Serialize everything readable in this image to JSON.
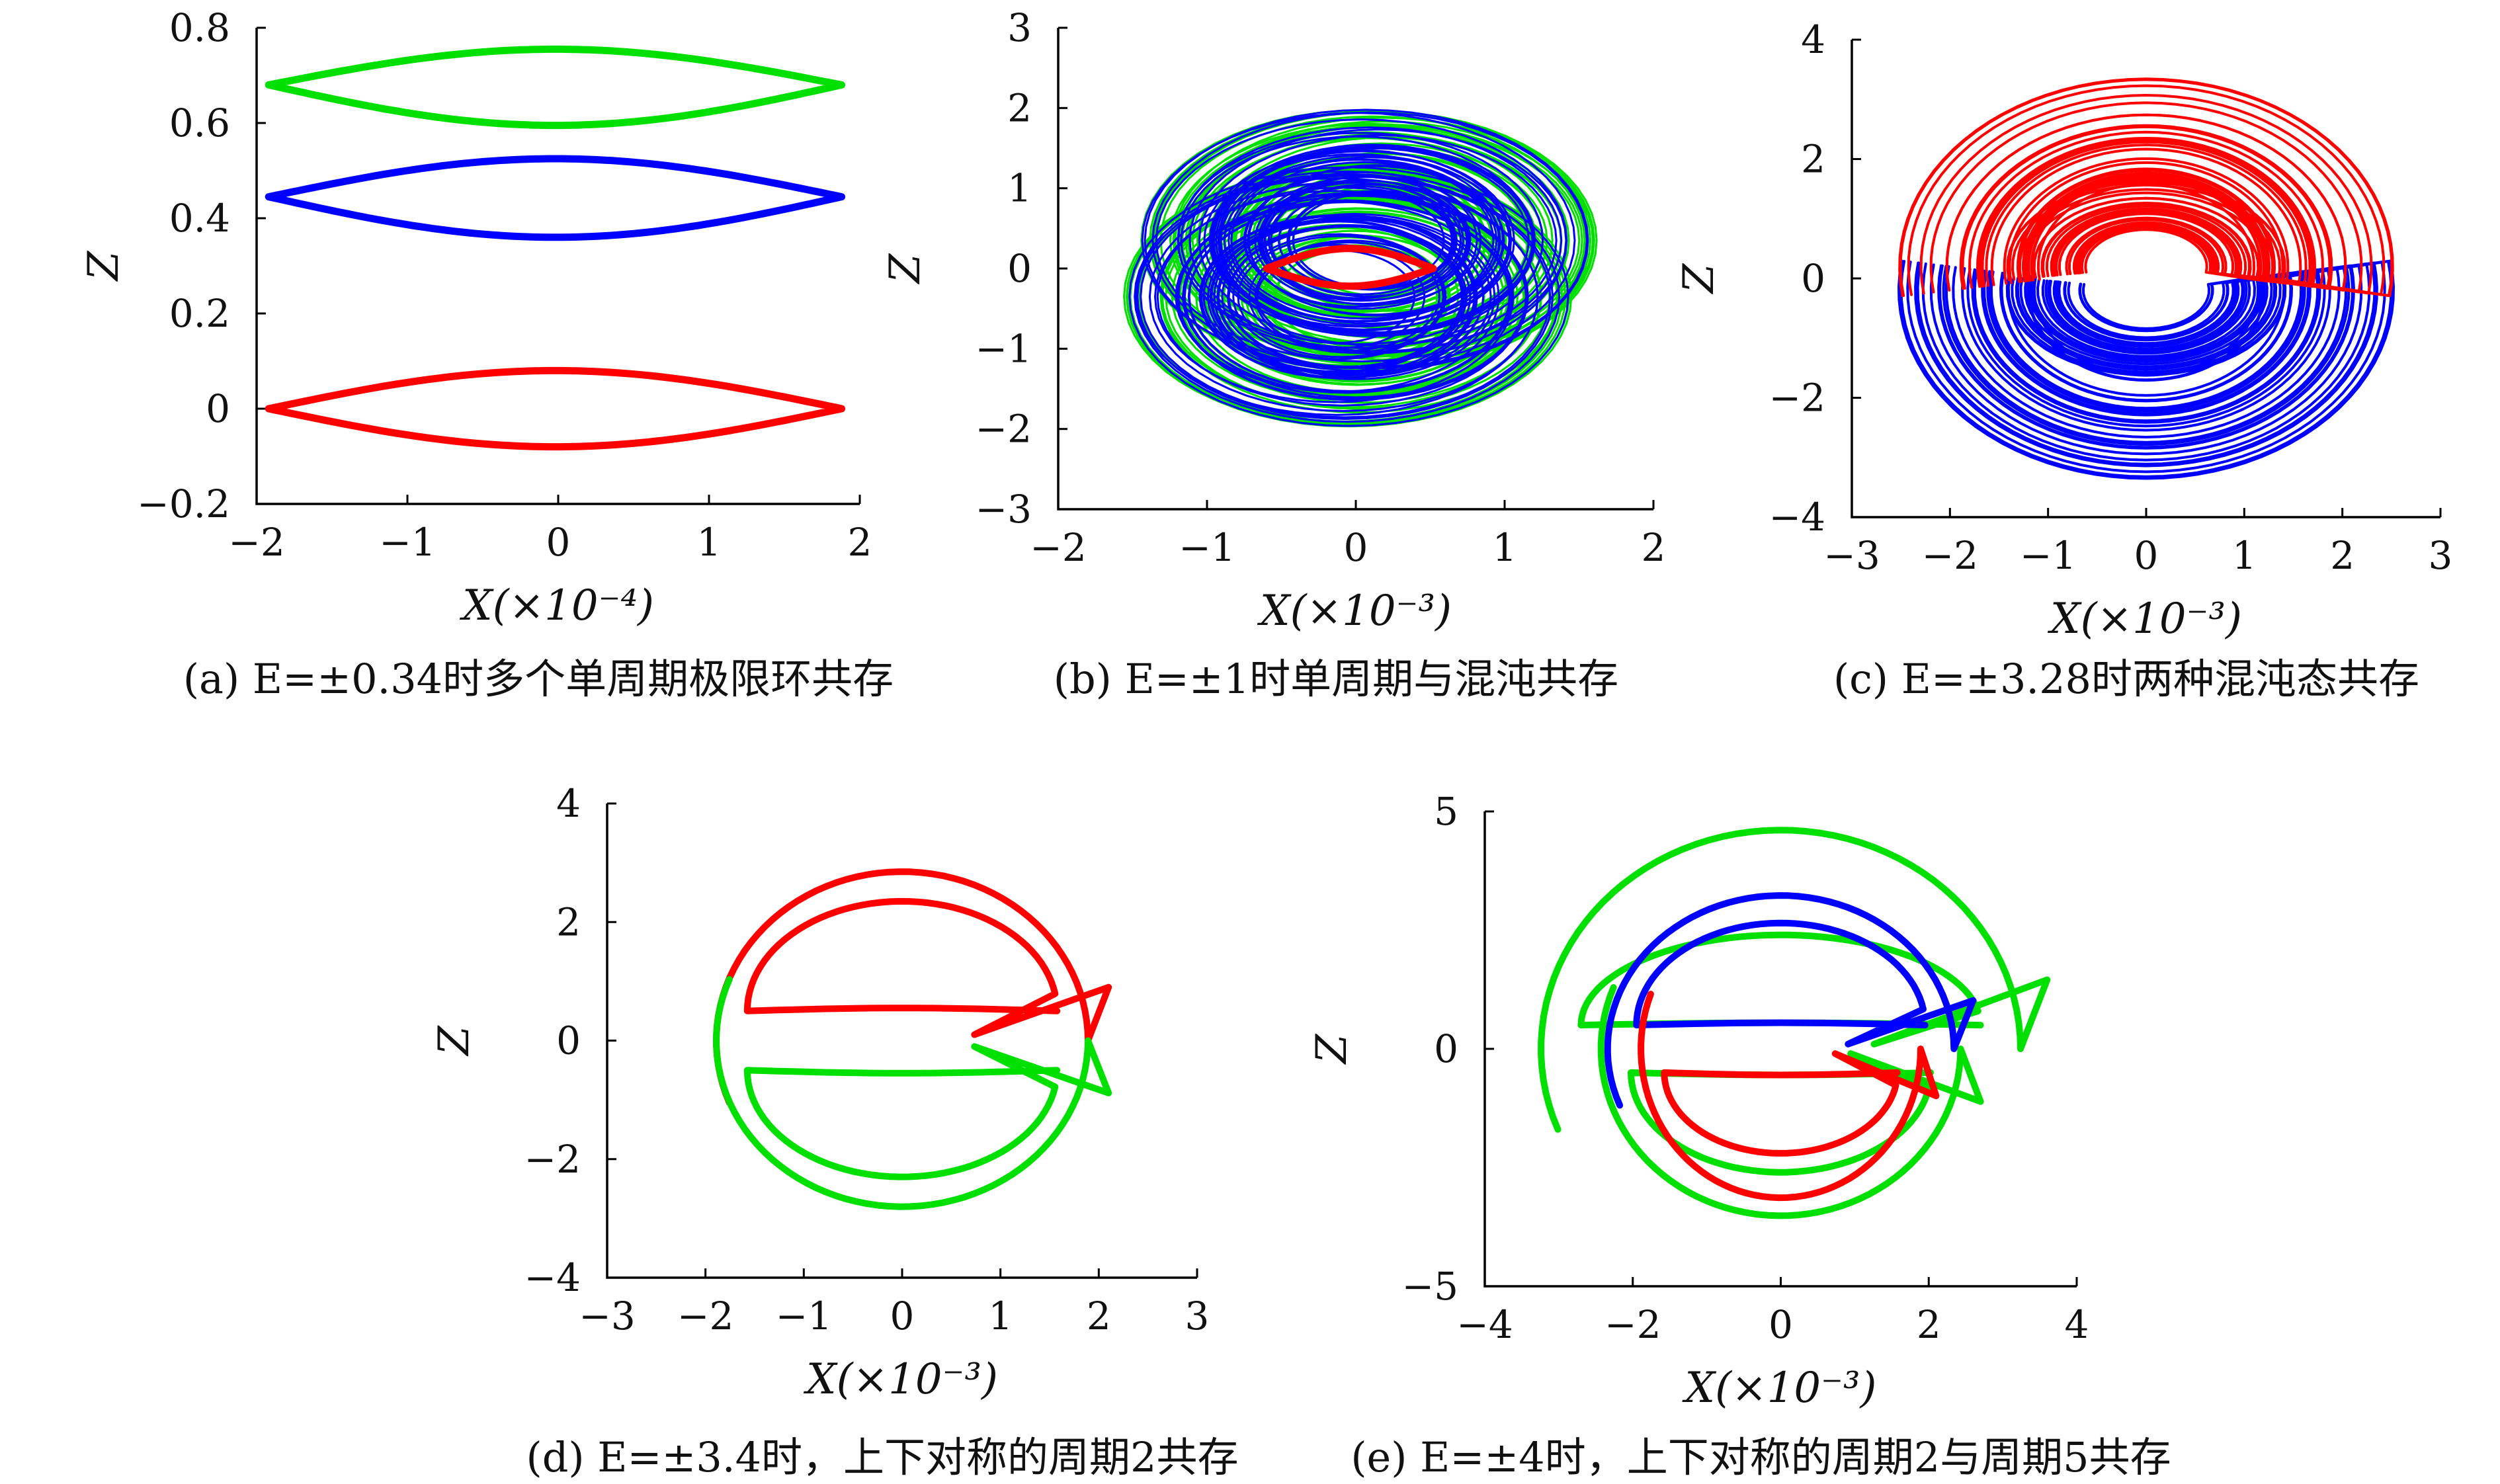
{
  "chart_data": [
    {
      "type": "line",
      "id": "a",
      "caption": "(a) E=±0.34时多个单周期极限环共存",
      "xlabel": "X(×10⁻⁴)",
      "ylabel": "Z",
      "xlim": [
        -2,
        2
      ],
      "ylim": [
        -0.2,
        0.8
      ],
      "xticks": [
        -2,
        -1,
        0,
        1,
        2
      ],
      "yticks": [
        -0.2,
        0,
        0.2,
        0.4,
        0.6,
        0.8
      ],
      "xtick_labels": [
        "−2",
        "−1",
        "0",
        "1",
        "2"
      ],
      "ytick_labels": [
        "−0.2",
        "0",
        "0.2",
        "0.4",
        "0.6",
        "0.8"
      ],
      "grid": false,
      "series": [
        {
          "color": "#00e000",
          "kind": "lens",
          "x_left": -1.92,
          "x_right": 1.88,
          "y_mid": 0.68,
          "y_top": 0.755,
          "y_bottom": 0.595
        },
        {
          "color": "#0000ff",
          "kind": "lens",
          "x_left": -1.92,
          "x_right": 1.88,
          "y_mid": 0.445,
          "y_top": 0.525,
          "y_bottom": 0.36
        },
        {
          "color": "#ff0000",
          "kind": "lens",
          "x_left": -1.92,
          "x_right": 1.88,
          "y_mid": 0.0,
          "y_top": 0.08,
          "y_bottom": -0.08
        }
      ]
    },
    {
      "type": "line",
      "id": "b",
      "caption": "(b) E=±1时单周期与混沌共存",
      "xlabel": "X(×10⁻³)",
      "ylabel": "Z",
      "xlim": [
        -2,
        2
      ],
      "ylim": [
        -3,
        3
      ],
      "xticks": [
        -2,
        -1,
        0,
        1,
        2
      ],
      "yticks": [
        -3,
        -2,
        -1,
        0,
        1,
        2,
        3
      ],
      "xtick_labels": [
        "−2",
        "−1",
        "0",
        "1",
        "2"
      ],
      "ytick_labels": [
        "−3",
        "−2",
        "−1",
        "0",
        "1",
        "2",
        "3"
      ],
      "grid": false,
      "series": [
        {
          "color": "#00e000",
          "kind": "chaos",
          "cx": 0.05,
          "cy": 0.0,
          "rx": 1.55,
          "ry": 2.05
        },
        {
          "color": "#0000ff",
          "kind": "chaos",
          "cx": 0.0,
          "cy": 0.0,
          "rx": 1.5,
          "ry": 2.0
        },
        {
          "color": "#ff0000",
          "kind": "lens",
          "x_left": -0.6,
          "x_right": 0.52,
          "y_mid": 0.0,
          "y_top": 0.25,
          "y_bottom": -0.22
        }
      ]
    },
    {
      "type": "line",
      "id": "c",
      "caption": "(c) E=±3.28时两种混沌态共存",
      "xlabel": "X(×10⁻³)",
      "ylabel": "Z",
      "xlim": [
        -3,
        3
      ],
      "ylim": [
        -4,
        4
      ],
      "xticks": [
        -3,
        -2,
        -1,
        0,
        1,
        2,
        3
      ],
      "yticks": [
        -4,
        -2,
        0,
        2,
        4
      ],
      "xtick_labels": [
        "−3",
        "−2",
        "−1",
        "0",
        "1",
        "2",
        "3"
      ],
      "ytick_labels": [
        "−4",
        "−2",
        "0",
        "2",
        "4"
      ],
      "grid": false,
      "series": [
        {
          "color": "#0000ff",
          "kind": "double-scroll-chaos",
          "flip": true,
          "scale": 1.05
        },
        {
          "color": "#ff0000",
          "kind": "double-scroll-chaos",
          "flip": false,
          "scale": 1.05
        }
      ]
    },
    {
      "type": "line",
      "id": "d",
      "caption": "(d) E=±3.4时，上下对称的周期2共存",
      "xlabel": "X(×10⁻³)",
      "ylabel": "Z",
      "xlim": [
        -3,
        3
      ],
      "ylim": [
        -4,
        4
      ],
      "xticks": [
        -3,
        -2,
        -1,
        0,
        1,
        2,
        3
      ],
      "yticks": [
        -4,
        -2,
        0,
        2,
        4
      ],
      "xtick_labels": [
        "−3",
        "−2",
        "−1",
        "0",
        "1",
        "2",
        "3"
      ],
      "ytick_labels": [
        "−4",
        "−2",
        "0",
        "2",
        "4"
      ],
      "grid": false,
      "series": [
        {
          "color": "#ff0000",
          "kind": "period2",
          "flip": false,
          "outer": 3.0,
          "inner": 2.35,
          "xr": 2.1
        },
        {
          "color": "#00e000",
          "kind": "period2",
          "flip": true,
          "outer": 2.95,
          "inner": 2.3,
          "xr": 2.1
        }
      ]
    },
    {
      "type": "line",
      "id": "e",
      "caption": "(e) E=±4时，上下对称的周期2与周期5共存",
      "xlabel": "X(×10⁻³)",
      "ylabel": "Z",
      "xlim": [
        -4,
        4
      ],
      "ylim": [
        -5,
        5
      ],
      "xticks": [
        -4,
        -2,
        0,
        2,
        4
      ],
      "yticks": [
        -5,
        0,
        5
      ],
      "xtick_labels": [
        "−4",
        "−2",
        "0",
        "2",
        "4"
      ],
      "ytick_labels": [
        "−5",
        "0",
        "5"
      ],
      "grid": false,
      "series": [
        {
          "color": "#00e000",
          "kind": "period2",
          "flip": false,
          "outer": 4.85,
          "inner": 2.4,
          "xr": 3.6
        },
        {
          "color": "#00e000",
          "kind": "period2",
          "flip": true,
          "outer": 3.7,
          "inner": 2.6,
          "xr": 2.7
        },
        {
          "color": "#0000ff",
          "kind": "period2",
          "flip": false,
          "outer": 3.4,
          "inner": 2.65,
          "xr": 2.6
        },
        {
          "color": "#ff0000",
          "kind": "period2",
          "flip": true,
          "outer": 3.3,
          "inner": 2.2,
          "xr": 2.1
        }
      ]
    }
  ]
}
